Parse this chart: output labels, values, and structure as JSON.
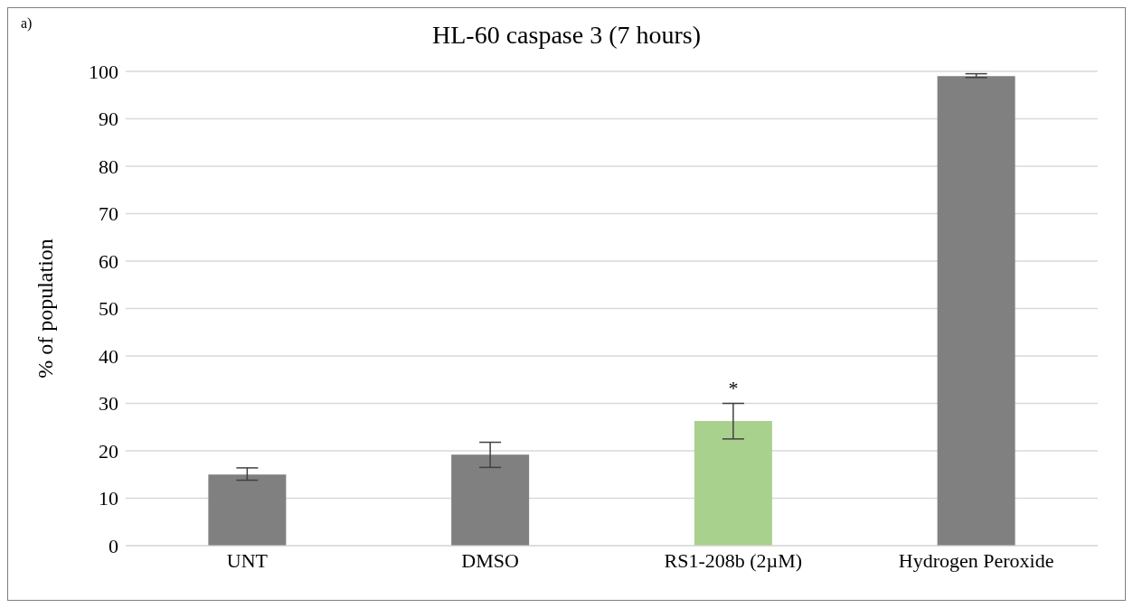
{
  "chart_data": {
    "type": "bar",
    "title": "HL-60 caspase 3 (7 hours)",
    "ylabel": "% of population",
    "categories": [
      "UNT",
      "DMSO",
      "RS1-208b (2µM)",
      "Hydrogen Peroxide"
    ],
    "values": [
      15.0,
      19.2,
      26.3,
      99.0
    ],
    "colors": [
      "#808080",
      "#808080",
      "#a9d18e",
      "#808080"
    ],
    "errors": [
      [
        13.8,
        16.4
      ],
      [
        16.5,
        21.8
      ],
      [
        22.5,
        30.0
      ],
      [
        98.7,
        99.5
      ]
    ],
    "ylim": [
      0,
      100
    ],
    "yticks": [
      0,
      10,
      20,
      30,
      40,
      50,
      60,
      70,
      80,
      90,
      100
    ],
    "grid": "y",
    "annotations": [
      "a)",
      {
        "text": "*",
        "x": "RS1-208b (2µM)",
        "y": 30.0
      }
    ]
  }
}
